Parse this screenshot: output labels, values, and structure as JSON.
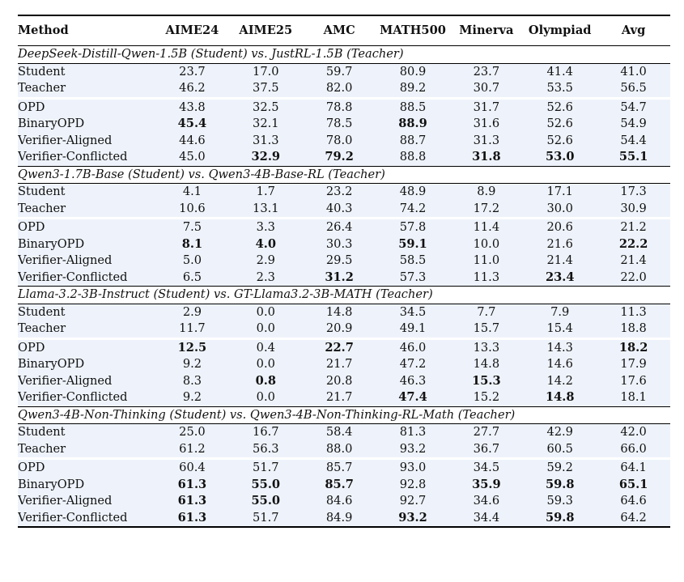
{
  "columns": [
    "Method",
    "AIME24",
    "AIME25",
    "AMC",
    "MATH500",
    "Minerva",
    "Olympiad",
    "Avg"
  ],
  "sections": [
    {
      "title": "DeepSeek-Distill-Qwen-1.5B (Student) vs. JustRL-1.5B (Teacher)",
      "rows": [
        {
          "method": "Student",
          "values": [
            "23.7",
            "17.0",
            "59.7",
            "80.9",
            "23.7",
            "41.4",
            "41.0"
          ],
          "bold": []
        },
        {
          "method": "Teacher",
          "values": [
            "46.2",
            "37.5",
            "82.0",
            "89.2",
            "30.7",
            "53.5",
            "56.5"
          ],
          "bold": []
        },
        {
          "method": "OPD",
          "values": [
            "43.8",
            "32.5",
            "78.8",
            "88.5",
            "31.7",
            "52.6",
            "54.7"
          ],
          "bold": []
        },
        {
          "method": "BinaryOPD",
          "values": [
            "45.4",
            "32.1",
            "78.5",
            "88.9",
            "31.6",
            "52.6",
            "54.9"
          ],
          "bold": [
            0,
            3
          ]
        },
        {
          "method": "Verifier-Aligned",
          "values": [
            "44.6",
            "31.3",
            "78.0",
            "88.7",
            "31.3",
            "52.6",
            "54.4"
          ],
          "bold": []
        },
        {
          "method": "Verifier-Conflicted",
          "values": [
            "45.0",
            "32.9",
            "79.2",
            "88.8",
            "31.8",
            "53.0",
            "55.1"
          ],
          "bold": [
            1,
            2,
            4,
            5,
            6
          ]
        }
      ]
    },
    {
      "title": "Qwen3-1.7B-Base (Student) vs. Qwen3-4B-Base-RL (Teacher)",
      "rows": [
        {
          "method": "Student",
          "values": [
            "4.1",
            "1.7",
            "23.2",
            "48.9",
            "8.9",
            "17.1",
            "17.3"
          ],
          "bold": []
        },
        {
          "method": "Teacher",
          "values": [
            "10.6",
            "13.1",
            "40.3",
            "74.2",
            "17.2",
            "30.0",
            "30.9"
          ],
          "bold": []
        },
        {
          "method": "OPD",
          "values": [
            "7.5",
            "3.3",
            "26.4",
            "57.8",
            "11.4",
            "20.6",
            "21.2"
          ],
          "bold": []
        },
        {
          "method": "BinaryOPD",
          "values": [
            "8.1",
            "4.0",
            "30.3",
            "59.1",
            "10.0",
            "21.6",
            "22.2"
          ],
          "bold": [
            0,
            1,
            3,
            6
          ]
        },
        {
          "method": "Verifier-Aligned",
          "values": [
            "5.0",
            "2.9",
            "29.5",
            "58.5",
            "11.0",
            "21.4",
            "21.4"
          ],
          "bold": []
        },
        {
          "method": "Verifier-Conflicted",
          "values": [
            "6.5",
            "2.3",
            "31.2",
            "57.3",
            "11.3",
            "23.4",
            "22.0"
          ],
          "bold": [
            2,
            5
          ]
        }
      ]
    },
    {
      "title": "Llama-3.2-3B-Instruct (Student) vs. GT-Llama3.2-3B-MATH (Teacher)",
      "rows": [
        {
          "method": "Student",
          "values": [
            "2.9",
            "0.0",
            "14.8",
            "34.5",
            "7.7",
            "7.9",
            "11.3"
          ],
          "bold": []
        },
        {
          "method": "Teacher",
          "values": [
            "11.7",
            "0.0",
            "20.9",
            "49.1",
            "15.7",
            "15.4",
            "18.8"
          ],
          "bold": []
        },
        {
          "method": "OPD",
          "values": [
            "12.5",
            "0.4",
            "22.7",
            "46.0",
            "13.3",
            "14.3",
            "18.2"
          ],
          "bold": [
            0,
            2,
            6
          ]
        },
        {
          "method": "BinaryOPD",
          "values": [
            "9.2",
            "0.0",
            "21.7",
            "47.2",
            "14.8",
            "14.6",
            "17.9"
          ],
          "bold": []
        },
        {
          "method": "Verifier-Aligned",
          "values": [
            "8.3",
            "0.8",
            "20.8",
            "46.3",
            "15.3",
            "14.2",
            "17.6"
          ],
          "bold": [
            1,
            4
          ]
        },
        {
          "method": "Verifier-Conflicted",
          "values": [
            "9.2",
            "0.0",
            "21.7",
            "47.4",
            "15.2",
            "14.8",
            "18.1"
          ],
          "bold": [
            3,
            5
          ]
        }
      ]
    },
    {
      "title": "Qwen3-4B-Non-Thinking (Student) vs. Qwen3-4B-Non-Thinking-RL-Math (Teacher)",
      "rows": [
        {
          "method": "Student",
          "values": [
            "25.0",
            "16.7",
            "58.4",
            "81.3",
            "27.7",
            "42.9",
            "42.0"
          ],
          "bold": []
        },
        {
          "method": "Teacher",
          "values": [
            "61.2",
            "56.3",
            "88.0",
            "93.2",
            "36.7",
            "60.5",
            "66.0"
          ],
          "bold": []
        },
        {
          "method": "OPD",
          "values": [
            "60.4",
            "51.7",
            "85.7",
            "93.0",
            "34.5",
            "59.2",
            "64.1"
          ],
          "bold": []
        },
        {
          "method": "BinaryOPD",
          "values": [
            "61.3",
            "55.0",
            "85.7",
            "92.8",
            "35.9",
            "59.8",
            "65.1"
          ],
          "bold": [
            0,
            1,
            2,
            4,
            5,
            6
          ]
        },
        {
          "method": "Verifier-Aligned",
          "values": [
            "61.3",
            "55.0",
            "84.6",
            "92.7",
            "34.6",
            "59.3",
            "64.6"
          ],
          "bold": [
            0,
            1
          ]
        },
        {
          "method": "Verifier-Conflicted",
          "values": [
            "61.3",
            "51.7",
            "84.9",
            "93.2",
            "34.4",
            "59.8",
            "64.2"
          ],
          "bold": [
            0,
            3,
            5
          ]
        }
      ]
    }
  ]
}
